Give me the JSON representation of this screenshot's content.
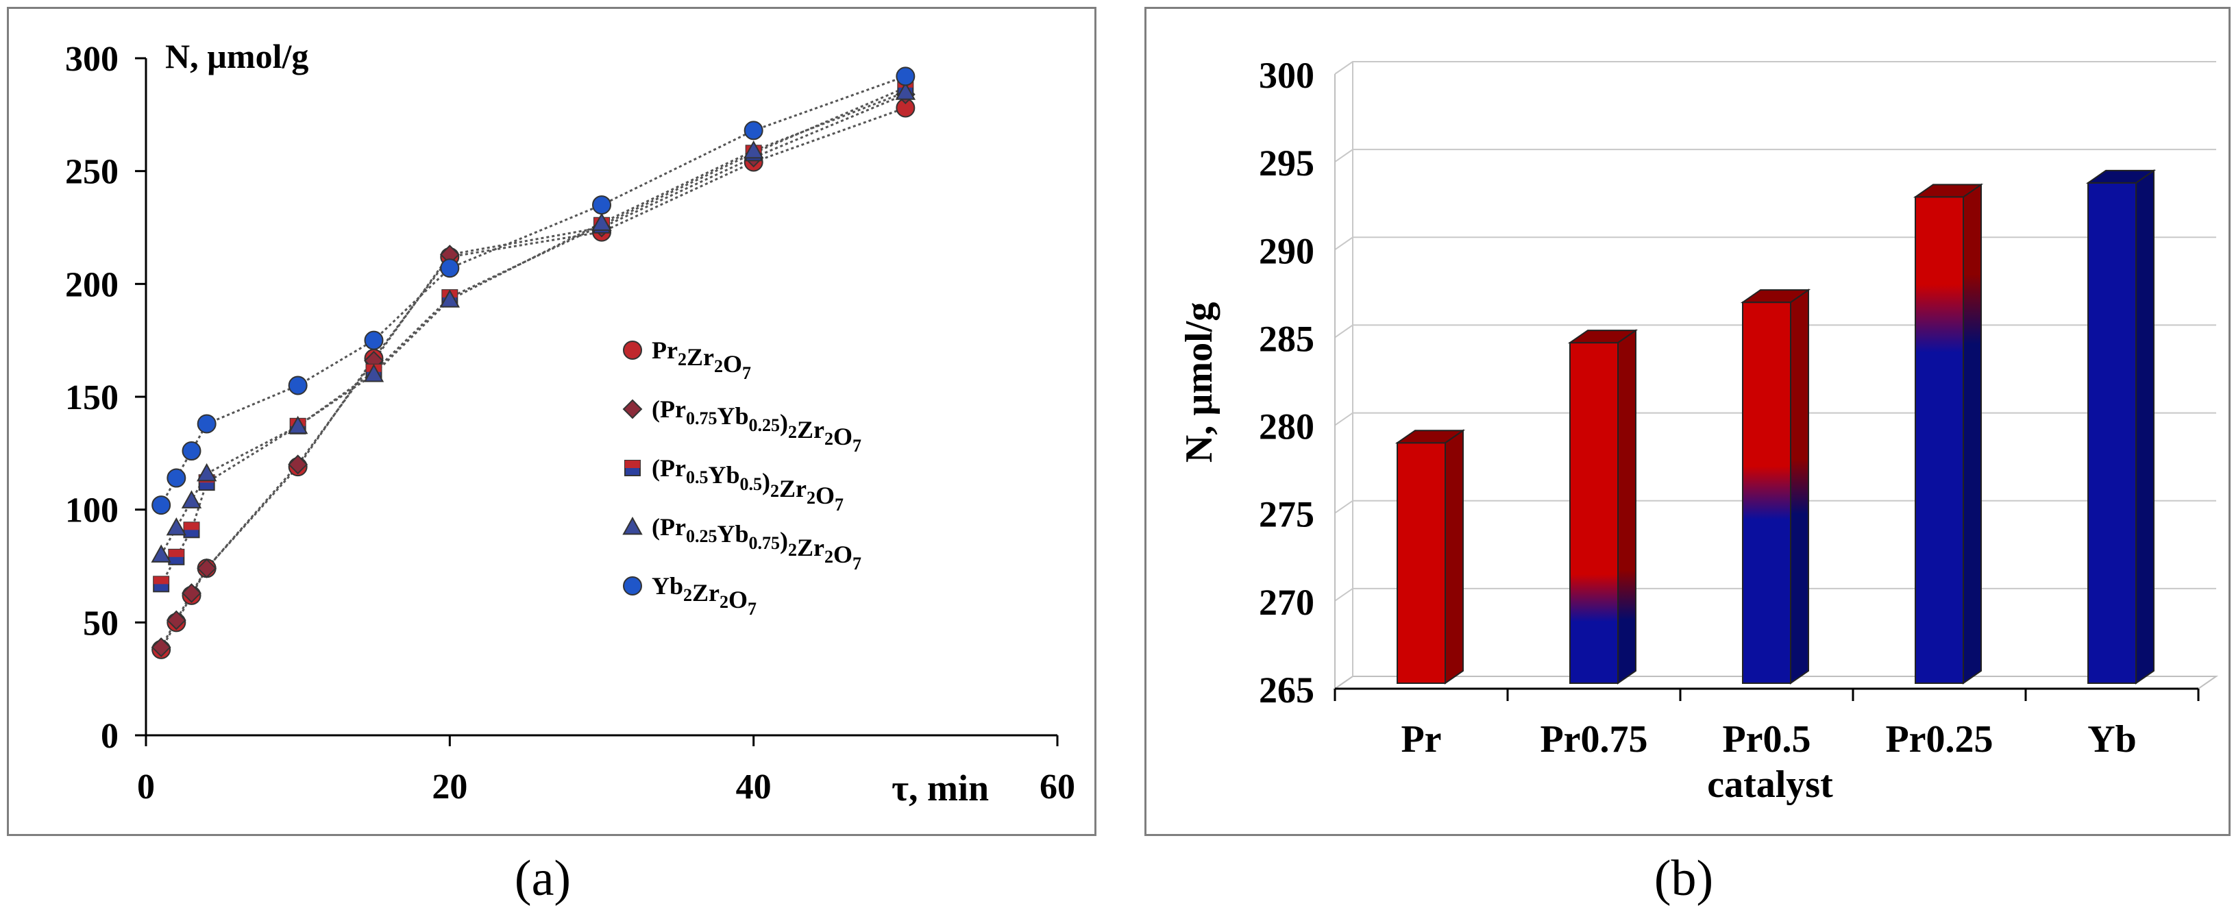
{
  "panels": {
    "a_caption": "(a)",
    "b_caption": "(b)"
  },
  "chart_data": [
    {
      "type": "line",
      "panel": "a",
      "ylabel": "N, µmol/g",
      "xlabel": "τ, min",
      "xlim": [
        0,
        60
      ],
      "ylim": [
        0,
        300
      ],
      "xticks": [
        0,
        20,
        40,
        60
      ],
      "yticks": [
        0,
        50,
        100,
        150,
        200,
        250,
        300
      ],
      "legend_position": "center-right",
      "series": [
        {
          "name": "Pr2Zr2O7",
          "legend_parts": [
            [
              "Pr",
              ""
            ],
            [
              "2",
              "sub"
            ],
            [
              "Zr",
              ""
            ],
            [
              "2",
              "sub"
            ],
            [
              "O",
              ""
            ],
            [
              "7",
              "sub"
            ]
          ],
          "marker": "circle",
          "color": "#c0282d",
          "x": [
            1,
            2,
            3,
            4,
            10,
            15,
            20,
            30,
            40,
            50
          ],
          "y": [
            38,
            50,
            62,
            74,
            119,
            167,
            212,
            223,
            254,
            278
          ]
        },
        {
          "name": "(Pr0.75Yb0.25)2Zr2O7",
          "legend_parts": [
            [
              "(Pr",
              ""
            ],
            [
              "0.75",
              "sub"
            ],
            [
              "Yb",
              ""
            ],
            [
              "0.25",
              "sub"
            ],
            [
              ")",
              ""
            ],
            [
              "2",
              "sub"
            ],
            [
              "Zr",
              ""
            ],
            [
              "2",
              "sub"
            ],
            [
              "O",
              ""
            ],
            [
              "7",
              "sub"
            ]
          ],
          "marker": "diamond",
          "color": "#8b2b3a",
          "x": [
            1,
            2,
            3,
            4,
            10,
            15,
            20,
            30,
            40,
            50
          ],
          "y": [
            39,
            51,
            63,
            74,
            120,
            166,
            213,
            225,
            256,
            284
          ]
        },
        {
          "name": "(Pr0.5Yb0.5)2Zr2O7",
          "legend_parts": [
            [
              "(Pr",
              ""
            ],
            [
              "0.5",
              "sub"
            ],
            [
              "Yb",
              ""
            ],
            [
              "0.5",
              "sub"
            ],
            [
              ")",
              ""
            ],
            [
              "2",
              "sub"
            ],
            [
              "Zr",
              ""
            ],
            [
              "2",
              "sub"
            ],
            [
              "O",
              ""
            ],
            [
              "7",
              "sub"
            ]
          ],
          "marker": "square",
          "color": "#c0282d",
          "color2": "#2b3f9e",
          "x": [
            1,
            2,
            3,
            4,
            10,
            15,
            20,
            30,
            40,
            50
          ],
          "y": [
            67,
            79,
            91,
            112,
            137,
            161,
            194,
            226,
            258,
            287
          ]
        },
        {
          "name": "(Pr0.25Yb0.75)2Zr2O7",
          "legend_parts": [
            [
              "(Pr",
              ""
            ],
            [
              "0.25",
              "sub"
            ],
            [
              "Yb",
              ""
            ],
            [
              "0.75",
              "sub"
            ],
            [
              ")",
              ""
            ],
            [
              "2",
              "sub"
            ],
            [
              "Zr",
              ""
            ],
            [
              "2",
              "sub"
            ],
            [
              "O",
              ""
            ],
            [
              "7",
              "sub"
            ]
          ],
          "marker": "triangle",
          "color": "#3a4a9a",
          "x": [
            1,
            2,
            3,
            4,
            10,
            15,
            20,
            30,
            40,
            50
          ],
          "y": [
            80,
            92,
            104,
            116,
            137,
            160,
            193,
            227,
            259,
            285
          ]
        },
        {
          "name": "Yb2Zr2O7",
          "legend_parts": [
            [
              "Yb",
              ""
            ],
            [
              "2",
              "sub"
            ],
            [
              "Zr",
              ""
            ],
            [
              "2",
              "sub"
            ],
            [
              "O",
              ""
            ],
            [
              "7",
              "sub"
            ]
          ],
          "marker": "circle",
          "color": "#1f56c9",
          "x": [
            1,
            2,
            3,
            4,
            10,
            15,
            20,
            30,
            40,
            50
          ],
          "y": [
            102,
            114,
            126,
            138,
            155,
            175,
            207,
            235,
            268,
            292
          ]
        }
      ]
    },
    {
      "type": "bar",
      "panel": "b",
      "style": "3d",
      "categories": [
        "Pr",
        "Pr0.75",
        "Pr0.5",
        "Pr0.25",
        "Yb"
      ],
      "values": [
        279.0,
        284.7,
        287.0,
        293.0,
        293.8
      ],
      "blue_fraction": [
        0,
        0.25,
        0.5,
        0.75,
        1
      ],
      "xlabel": "catalyst",
      "ylabel": "N, µmol/g",
      "ylim": [
        265,
        300
      ],
      "yticks": [
        265,
        270,
        275,
        280,
        285,
        290,
        295,
        300
      ],
      "colors": {
        "pr": "#cc0000",
        "yb": "#0a0f9e",
        "pr_dark": "#8a0000",
        "yb_dark": "#050a6a"
      }
    }
  ]
}
